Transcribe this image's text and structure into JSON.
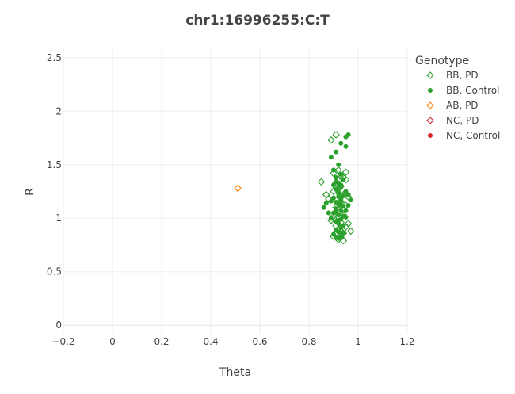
{
  "chart_data": {
    "type": "scatter",
    "title": "chr1:16996255:C:T",
    "xlabel": "Theta",
    "ylabel": "R",
    "xlim": [
      -0.2,
      1.2
    ],
    "ylim": [
      -0.08,
      2.58
    ],
    "x_ticks": [
      "−0.2",
      "0",
      "0.2",
      "0.4",
      "0.6",
      "0.8",
      "1",
      "1.2"
    ],
    "x_tick_values": [
      -0.2,
      0,
      0.2,
      0.4,
      0.6,
      0.8,
      1.0,
      1.2
    ],
    "y_ticks": [
      "0",
      "0.5",
      "1",
      "1.5",
      "2",
      "2.5"
    ],
    "y_tick_values": [
      0,
      0.5,
      1,
      1.5,
      2,
      2.5
    ],
    "grid": true,
    "legend": {
      "title": "Genotype",
      "placement": "top-right",
      "entries": [
        {
          "name": "BB, PD",
          "symbol": "diamond-open",
          "color": "#2ca02c"
        },
        {
          "name": "BB, Control",
          "symbol": "circle",
          "color": "#2ca02c"
        },
        {
          "name": "AB, PD",
          "symbol": "diamond-open",
          "color": "#ff7f0e"
        },
        {
          "name": "NC, PD",
          "symbol": "diamond-open",
          "color": "#d62728"
        },
        {
          "name": "NC, Control",
          "symbol": "circle",
          "color": "#d62728"
        }
      ]
    },
    "series": [
      {
        "name": "BB, PD",
        "symbol": "diamond-open",
        "color": "#2ca02c",
        "x": [
          0.91,
          0.89,
          0.92,
          0.9,
          0.93,
          0.95,
          0.94,
          0.92,
          0.91,
          0.93,
          0.92,
          0.9,
          0.94,
          0.96,
          0.88,
          0.85,
          0.87,
          0.93,
          0.95,
          0.91,
          0.92,
          0.94,
          0.9,
          0.89,
          0.93,
          0.91,
          0.95,
          0.92,
          0.93,
          0.94,
          0.91,
          0.9,
          0.97,
          0.96,
          0.94,
          0.92,
          0.91,
          0.95,
          0.93,
          0.92,
          0.9,
          0.94
        ],
        "y": [
          1.78,
          1.73,
          1.45,
          1.42,
          1.4,
          1.43,
          1.38,
          1.35,
          1.33,
          1.3,
          1.27,
          1.25,
          1.22,
          1.2,
          1.18,
          1.34,
          1.22,
          1.15,
          1.12,
          1.1,
          1.05,
          1.03,
          1.0,
          0.98,
          0.96,
          0.93,
          0.92,
          0.9,
          0.88,
          0.86,
          0.85,
          0.83,
          0.88,
          0.95,
          1.08,
          1.14,
          1.28,
          1.36,
          0.82,
          0.8,
          1.02,
          0.79
        ]
      },
      {
        "name": "BB, Control",
        "symbol": "circle",
        "color": "#2ca02c",
        "x": [
          0.96,
          0.95,
          0.93,
          0.95,
          0.91,
          0.89,
          0.92,
          0.9,
          0.93,
          0.91,
          0.94,
          0.92,
          0.9,
          0.93,
          0.91,
          0.95,
          0.92,
          0.94,
          0.9,
          0.93,
          0.91,
          0.92,
          0.94,
          0.91,
          0.93,
          0.9,
          0.92,
          0.95,
          0.93,
          0.91,
          0.92,
          0.94,
          0.93,
          0.91,
          0.92,
          0.9,
          0.93,
          0.92,
          0.91,
          0.94,
          0.92,
          0.93,
          0.91,
          0.93,
          0.92,
          0.94,
          0.92,
          0.93,
          0.91,
          0.92,
          0.86,
          0.87,
          0.88,
          0.96,
          0.97,
          0.96,
          0.95,
          0.89,
          0.89,
          0.93
        ],
        "y": [
          1.78,
          1.76,
          1.7,
          1.67,
          1.62,
          1.57,
          1.5,
          1.45,
          1.41,
          1.38,
          1.36,
          1.33,
          1.31,
          1.29,
          1.27,
          1.25,
          1.23,
          1.21,
          1.19,
          1.17,
          1.15,
          1.13,
          1.11,
          1.09,
          1.07,
          1.05,
          1.03,
          1.01,
          0.99,
          0.97,
          0.95,
          0.93,
          0.91,
          0.89,
          0.87,
          0.85,
          0.83,
          0.81,
          0.82,
          0.86,
          1.24,
          1.16,
          1.06,
          1.18,
          1.28,
          1.02,
          0.98,
          1.12,
          1.34,
          1.2,
          1.1,
          1.14,
          1.05,
          1.22,
          1.17,
          1.12,
          1.07,
          1.0,
          1.16,
          1.31
        ]
      },
      {
        "name": "AB, PD",
        "symbol": "diamond-open",
        "color": "#ff7f0e",
        "x": [
          0.51
        ],
        "y": [
          1.28
        ]
      },
      {
        "name": "NC, PD",
        "symbol": "diamond-open",
        "color": "#d62728",
        "x": [],
        "y": []
      },
      {
        "name": "NC, Control",
        "symbol": "circle",
        "color": "#d62728",
        "x": [],
        "y": []
      }
    ]
  }
}
